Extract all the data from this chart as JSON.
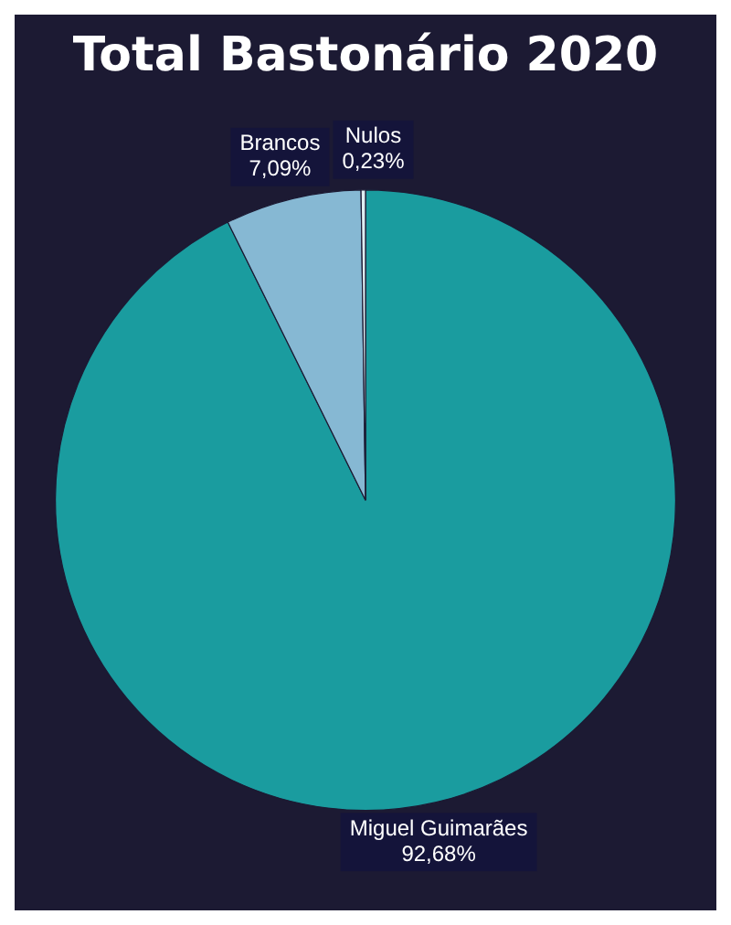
{
  "chart_data": {
    "type": "pie",
    "title": "Total Bastonário 2020",
    "categories": [
      "Miguel Guimarães",
      "Brancos",
      "Nulos"
    ],
    "values": [
      92.68,
      7.09,
      0.23
    ],
    "colors": [
      "#1a9c9f",
      "#86b8d3",
      "#dfeef2"
    ],
    "value_labels": [
      "92,68%",
      "7,09%",
      "0,23%"
    ],
    "legend": false
  }
}
